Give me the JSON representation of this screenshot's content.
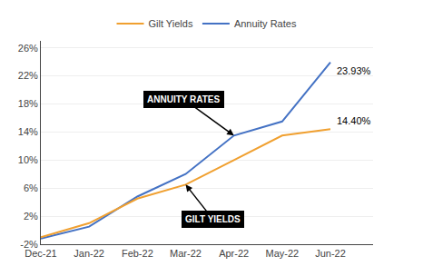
{
  "chart_data": {
    "type": "line",
    "categories": [
      "Dec-21",
      "Jan-22",
      "Feb-22",
      "Mar-22",
      "Apr-22",
      "May-22",
      "Jun-22"
    ],
    "series": [
      {
        "name": "Gilt Yields",
        "color": "#F0A030",
        "values": [
          -1.0,
          1.0,
          4.5,
          6.5,
          10.0,
          13.5,
          14.4
        ],
        "value_labels": [
          null,
          null,
          null,
          null,
          null,
          null,
          "14.40%"
        ],
        "annotation": "GILT YIELDS"
      },
      {
        "name": "Annuity Rates",
        "color": "#4472C4",
        "values": [
          -1.2,
          0.5,
          4.8,
          8.0,
          13.5,
          15.5,
          23.93
        ],
        "value_labels": [
          null,
          null,
          null,
          null,
          null,
          null,
          "23.93%"
        ],
        "annotation": "ANNUITY RATES"
      }
    ],
    "ylim": [
      -2,
      27
    ],
    "yticks": [
      {
        "value": -2,
        "label": "-2%"
      },
      {
        "value": 2,
        "label": "2%"
      },
      {
        "value": 6,
        "label": "6%"
      },
      {
        "value": 10,
        "label": "10%"
      },
      {
        "value": 14,
        "label": "14%"
      },
      {
        "value": 18,
        "label": "18%"
      },
      {
        "value": 22,
        "label": "22%"
      },
      {
        "value": 26,
        "label": "26%"
      }
    ],
    "grid": true,
    "legend": "top"
  }
}
